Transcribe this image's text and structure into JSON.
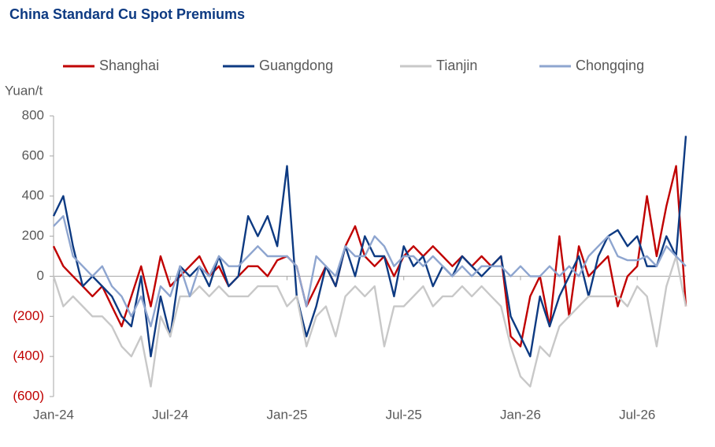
{
  "chart_data": {
    "type": "line",
    "title": "China Standard Cu Spot Premiums",
    "y_label": "Yuan/t",
    "x": [
      0,
      0.5,
      1,
      1.5,
      2,
      2.5,
      3,
      3.5,
      4,
      4.5,
      5,
      5.5,
      6,
      6.5,
      7,
      7.5,
      8,
      8.5,
      9,
      9.5,
      10,
      10.5,
      11,
      11.5,
      12,
      12.5,
      13,
      13.5,
      14,
      14.5,
      15,
      15.5,
      16,
      16.5,
      17,
      17.5,
      18,
      18.5,
      19,
      19.5,
      20,
      20.5,
      21,
      21.5,
      22,
      22.5,
      23,
      23.5,
      24,
      24.5,
      25,
      25.5,
      26,
      26.5,
      27,
      27.5,
      28,
      28.5,
      29,
      29.5,
      30,
      30.5,
      31,
      31.5,
      32,
      32.5
    ],
    "series": [
      {
        "name": "Shanghai",
        "color": "#c00000",
        "values": [
          150,
          50,
          0,
          -50,
          -100,
          -50,
          -150,
          -250,
          -100,
          50,
          -150,
          100,
          -50,
          0,
          50,
          100,
          0,
          50,
          -50,
          0,
          50,
          50,
          0,
          80,
          100,
          50,
          -150,
          -50,
          50,
          -50,
          150,
          250,
          100,
          50,
          100,
          0,
          100,
          150,
          100,
          150,
          100,
          50,
          100,
          50,
          100,
          50,
          100,
          -300,
          -350,
          -100,
          0,
          -250,
          200,
          -200,
          150,
          0,
          50,
          100,
          -150,
          0,
          50,
          400,
          100,
          350,
          550,
          -150
        ]
      },
      {
        "name": "Guangdong",
        "color": "#0d3a82",
        "values": [
          300,
          400,
          150,
          -50,
          0,
          -50,
          -100,
          -200,
          -250,
          0,
          -400,
          -100,
          -300,
          50,
          0,
          50,
          -50,
          100,
          -50,
          0,
          300,
          200,
          300,
          150,
          550,
          -100,
          -300,
          -150,
          50,
          -50,
          150,
          0,
          200,
          100,
          100,
          -100,
          150,
          50,
          100,
          -50,
          50,
          0,
          100,
          50,
          0,
          50,
          100,
          -200,
          -300,
          -400,
          -100,
          -250,
          -100,
          0,
          100,
          -100,
          100,
          200,
          230,
          150,
          200,
          50,
          50,
          200,
          100,
          700
        ]
      },
      {
        "name": "Tianjin",
        "color": "#c8c8c8",
        "values": [
          0,
          -150,
          -100,
          -150,
          -200,
          -200,
          -250,
          -350,
          -400,
          -300,
          -550,
          -200,
          -300,
          -100,
          -100,
          -50,
          -100,
          -50,
          -100,
          -100,
          -100,
          -50,
          -50,
          -50,
          -150,
          -100,
          -350,
          -200,
          -150,
          -300,
          -100,
          -50,
          -100,
          -50,
          -350,
          -150,
          -150,
          -100,
          -50,
          -150,
          -100,
          -100,
          -50,
          -100,
          -50,
          -100,
          -150,
          -350,
          -500,
          -550,
          -350,
          -400,
          -250,
          -200,
          -150,
          -100,
          -100,
          -100,
          -100,
          -150,
          -50,
          -100,
          -350,
          -50,
          100,
          -150
        ]
      },
      {
        "name": "Chongqing",
        "color": "#8ea5cf",
        "values": [
          250,
          300,
          100,
          50,
          0,
          50,
          -50,
          -100,
          -200,
          -100,
          -250,
          -50,
          -100,
          50,
          -100,
          50,
          0,
          100,
          50,
          50,
          100,
          150,
          100,
          100,
          100,
          50,
          -150,
          100,
          50,
          0,
          150,
          100,
          100,
          200,
          150,
          50,
          100,
          100,
          50,
          100,
          50,
          0,
          50,
          0,
          50,
          50,
          50,
          0,
          50,
          0,
          0,
          50,
          0,
          50,
          0,
          100,
          150,
          200,
          100,
          80,
          80,
          100,
          50,
          150,
          100,
          50
        ]
      }
    ],
    "xlim": [
      0,
      32.5
    ],
    "xticks": [
      {
        "value": 0,
        "label": "Jan-24"
      },
      {
        "value": 6,
        "label": "Jul-24"
      },
      {
        "value": 12,
        "label": "Jan-25"
      },
      {
        "value": 18,
        "label": "Jul-25"
      },
      {
        "value": 24,
        "label": "Jan-26"
      },
      {
        "value": 30,
        "label": "Jul-26"
      }
    ],
    "ylim": [
      -600,
      800
    ],
    "yticks": [
      {
        "value": -600,
        "label": "(600)"
      },
      {
        "value": -400,
        "label": "(400)"
      },
      {
        "value": -200,
        "label": "(200)"
      },
      0,
      200,
      400,
      600,
      800
    ],
    "negative_tick_color": "#c00000",
    "tick_color": "#595959",
    "grid": false
  }
}
